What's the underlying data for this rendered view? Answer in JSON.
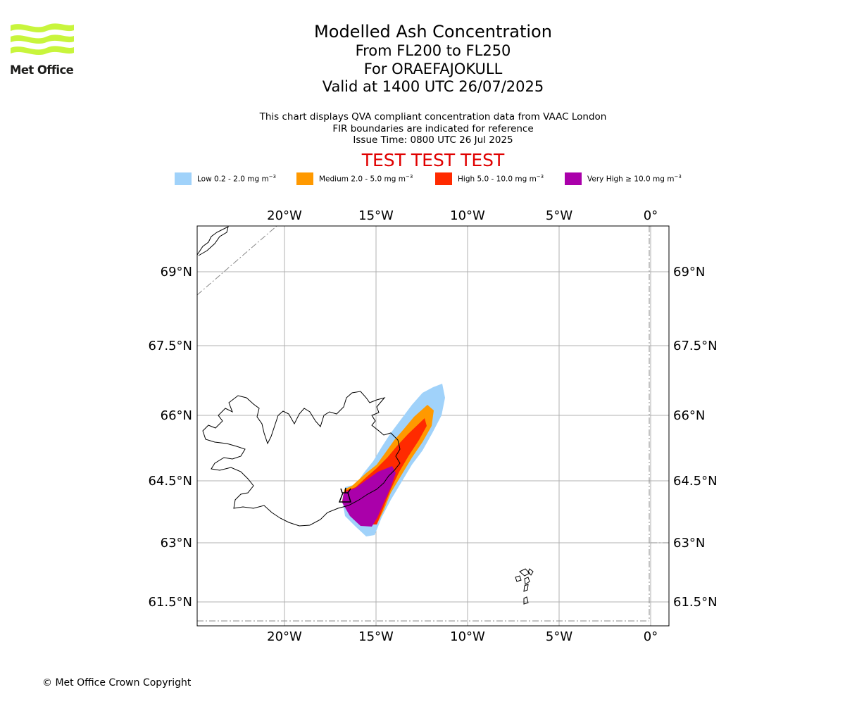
{
  "logo": {
    "text": "Met Office"
  },
  "title": {
    "line1": "Modelled Ash Concentration",
    "line2": "From FL200 to FL250",
    "line3": "For ORAEFAJOKULL",
    "line4": "Valid at 1400 UTC 26/07/2025"
  },
  "subtitle": {
    "line1": "This chart displays QVA compliant concentration data from VAAC London",
    "line2": "FIR boundaries are indicated for reference",
    "line3": "Issue Time: 0800 UTC 26 Jul 2025"
  },
  "test_banner": "TEST TEST TEST",
  "legend": [
    {
      "label": "Low 0.2 - 2.0 mg m",
      "exp": "−3",
      "color": "#a0d2fa"
    },
    {
      "label": "Medium 2.0 - 5.0 mg m",
      "exp": "−3",
      "color": "#ff9900"
    },
    {
      "label": "High 5.0 - 10.0 mg m",
      "exp": "−3",
      "color": "#ff2a00"
    },
    {
      "label": "Very High  ≥  10.0 mg m",
      "exp": "−3",
      "color": "#aa00aa"
    }
  ],
  "axes": {
    "lon_labels": [
      "20°W",
      "15°W",
      "10°W",
      "5°W",
      "0°"
    ],
    "lat_labels": [
      "69°N",
      "67.5°N",
      "66°N",
      "64.5°N",
      "63°N",
      "61.5°N"
    ]
  },
  "copyright": "© Met Office Crown Copyright"
}
